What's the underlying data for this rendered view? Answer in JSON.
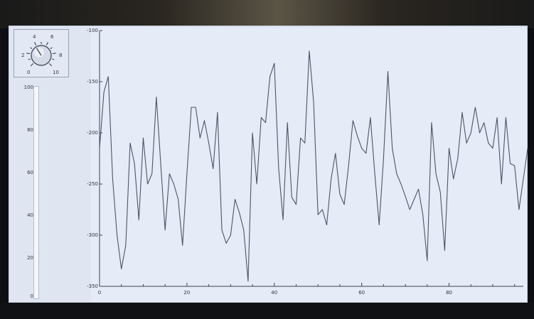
{
  "knob": {
    "labels": [
      "0",
      "2",
      "4",
      "6",
      "8",
      "10"
    ],
    "value_fraction": 0.38
  },
  "slider": {
    "ticks": [
      "100",
      "80",
      "60",
      "40",
      "20",
      "0"
    ],
    "value_fraction": 0.0
  },
  "chart_data": {
    "type": "line",
    "title": "",
    "xlabel": "",
    "ylabel": "",
    "xlim": [
      0,
      97
    ],
    "ylim": [
      -350,
      -100
    ],
    "x_ticks": [
      0,
      20,
      40,
      60,
      80
    ],
    "y_ticks": [
      -100,
      -150,
      -200,
      -250,
      -300,
      -350
    ],
    "grid": false,
    "color": "#4a5569",
    "series": [
      {
        "name": "",
        "values": [
          -215,
          -160,
          -145,
          -245,
          -300,
          -333,
          -310,
          -210,
          -230,
          -285,
          -205,
          -250,
          -240,
          -165,
          -230,
          -295,
          -240,
          -250,
          -265,
          -310,
          -240,
          -175,
          -175,
          -205,
          -188,
          -210,
          -235,
          -180,
          -295,
          -308,
          -300,
          -265,
          -278,
          -295,
          -345,
          -200,
          -250,
          -185,
          -190,
          -145,
          -132,
          -235,
          -285,
          -190,
          -263,
          -270,
          -205,
          -210,
          -120,
          -170,
          -280,
          -275,
          -290,
          -245,
          -220,
          -260,
          -270,
          -232,
          -188,
          -203,
          -215,
          -220,
          -185,
          -240,
          -290,
          -225,
          -140,
          -215,
          -240,
          -250,
          -262,
          -275,
          -265,
          -255,
          -280,
          -325,
          -190,
          -240,
          -258,
          -315,
          -215,
          -245,
          -225,
          -180,
          -210,
          -200,
          -175,
          -200,
          -190,
          -210,
          -215,
          -185,
          -250,
          -185,
          -230,
          -232,
          -275,
          -245,
          -215
        ]
      }
    ]
  }
}
